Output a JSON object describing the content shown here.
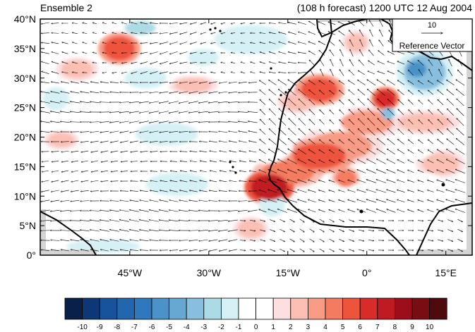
{
  "header": {
    "left_title": "Ensemble 2",
    "right_title": "(108 h forecast) 1200 UTC 12 Aug 2004"
  },
  "map": {
    "lon_range": [
      -62,
      20
    ],
    "lat_range": [
      0,
      40
    ],
    "lat_ticks": [
      {
        "value": 0,
        "label": "0°"
      },
      {
        "value": 5,
        "label": "5°N"
      },
      {
        "value": 10,
        "label": "10°N"
      },
      {
        "value": 15,
        "label": "15°N"
      },
      {
        "value": 20,
        "label": "20°N"
      },
      {
        "value": 25,
        "label": "25°N"
      },
      {
        "value": 30,
        "label": "30°N"
      },
      {
        "value": 35,
        "label": "35°N"
      },
      {
        "value": 40,
        "label": "40°N"
      }
    ],
    "lon_ticks": [
      {
        "value": -45,
        "label": "45°W"
      },
      {
        "value": -30,
        "label": "30°W"
      },
      {
        "value": -15,
        "label": "15°W"
      },
      {
        "value": 0,
        "label": "0°"
      },
      {
        "value": 15,
        "label": "15°E"
      }
    ],
    "anomaly_features": [
      {
        "lon": -18.5,
        "lat": 11.5,
        "rx": 3.5,
        "ry": 2.2,
        "value": 7
      },
      {
        "lon": -15,
        "lat": 14,
        "rx": 5,
        "ry": 2,
        "value": 4
      },
      {
        "lon": -9,
        "lat": 16.8,
        "rx": 5,
        "ry": 2.2,
        "value": 5
      },
      {
        "lon": -5,
        "lat": 18.5,
        "rx": 6,
        "ry": 2.5,
        "value": 3
      },
      {
        "lon": -4,
        "lat": 13,
        "rx": 2,
        "ry": 1.5,
        "value": 4
      },
      {
        "lon": 0,
        "lat": 22.5,
        "rx": 5,
        "ry": 2,
        "value": 3
      },
      {
        "lon": 3.5,
        "lat": 26.5,
        "rx": 2,
        "ry": 1.5,
        "value": 6
      },
      {
        "lon": -9,
        "lat": 28,
        "rx": 3.5,
        "ry": 2,
        "value": 5
      },
      {
        "lon": -13,
        "lat": 26,
        "rx": 3,
        "ry": 1.5,
        "value": 2
      },
      {
        "lon": -47,
        "lat": 35,
        "rx": 3,
        "ry": 2,
        "value": 5
      },
      {
        "lon": -55,
        "lat": 31.5,
        "rx": 3,
        "ry": 1.5,
        "value": 2
      },
      {
        "lon": -33,
        "lat": 28.8,
        "rx": 3.5,
        "ry": 1.2,
        "value": 2
      },
      {
        "lon": -2,
        "lat": 36,
        "rx": 2,
        "ry": 1.5,
        "value": 2
      },
      {
        "lon": 11,
        "lat": 22.5,
        "rx": 5,
        "ry": 1.5,
        "value": 2
      },
      {
        "lon": 14,
        "lat": 15.5,
        "rx": 3.5,
        "ry": 1.8,
        "value": 2
      },
      {
        "lon": -58,
        "lat": 19.5,
        "rx": 2.5,
        "ry": 1.2,
        "value": 2
      },
      {
        "lon": -22,
        "lat": 4.5,
        "rx": 2.5,
        "ry": 1.5,
        "value": 2
      },
      {
        "lon": 11,
        "lat": 31,
        "rx": 4,
        "ry": 3,
        "value": -4
      },
      {
        "lon": 9.5,
        "lat": 31.5,
        "rx": 1.8,
        "ry": 1.3,
        "value": -6
      },
      {
        "lon": -43,
        "lat": 38.5,
        "rx": 3,
        "ry": 1.2,
        "value": -3
      },
      {
        "lon": -22,
        "lat": 36.5,
        "rx": 7,
        "ry": 2.5,
        "value": -2
      },
      {
        "lon": -31,
        "lat": 33.5,
        "rx": 3,
        "ry": 1.5,
        "value": -2
      },
      {
        "lon": -42,
        "lat": 30,
        "rx": 4,
        "ry": 1.8,
        "value": -2
      },
      {
        "lon": -24,
        "lat": 31,
        "rx": 5,
        "ry": 2,
        "value": -1
      },
      {
        "lon": -45,
        "lat": 23,
        "rx": 8,
        "ry": 2.5,
        "value": -1
      },
      {
        "lon": -38,
        "lat": 20.5,
        "rx": 6,
        "ry": 2,
        "value": -2
      },
      {
        "lon": -20,
        "lat": 18.5,
        "rx": 6,
        "ry": 3,
        "value": -1
      },
      {
        "lon": -50,
        "lat": 14,
        "rx": 7,
        "ry": 2.5,
        "value": -1
      },
      {
        "lon": -36,
        "lat": 12,
        "rx": 6,
        "ry": 2,
        "value": -2
      },
      {
        "lon": -55,
        "lat": 7.5,
        "rx": 5,
        "ry": 2,
        "value": -1
      },
      {
        "lon": -40,
        "lat": 5.5,
        "rx": 7,
        "ry": 2,
        "value": -1
      },
      {
        "lon": -50,
        "lat": 1.5,
        "rx": 7,
        "ry": 1.2,
        "value": -2
      },
      {
        "lon": -18,
        "lat": 8.5,
        "rx": 2.5,
        "ry": 2,
        "value": -2
      },
      {
        "lon": -6,
        "lat": 22.5,
        "rx": 4,
        "ry": 2.5,
        "value": -1
      },
      {
        "lon": 4,
        "lat": 24,
        "rx": 1.2,
        "ry": 1,
        "value": -4
      },
      {
        "lon": -5,
        "lat": 10.5,
        "rx": 5,
        "ry": 1.8,
        "value": -1
      },
      {
        "lon": 8,
        "lat": 18,
        "rx": 5,
        "ry": 2,
        "value": -1
      },
      {
        "lon": 10,
        "lat": 12,
        "rx": 5,
        "ry": 2,
        "value": -1
      },
      {
        "lon": 3,
        "lat": 6,
        "rx": 5,
        "ry": 1.5,
        "value": -1
      },
      {
        "lon": -59,
        "lat": 26.5,
        "rx": 2.5,
        "ry": 2,
        "value": -2
      }
    ]
  },
  "reference_vector": {
    "magnitude_label": "10",
    "caption": "Reference Vector"
  },
  "colorbar": {
    "colors": [
      "#08204a",
      "#0d3777",
      "#17539c",
      "#2266ae",
      "#2f78bd",
      "#4a92c8",
      "#67a8d2",
      "#88bfde",
      "#addbe5",
      "#d5f1f6",
      "#ffffff",
      "#ffffff",
      "#fddfe0",
      "#fbbfb3",
      "#f89c86",
      "#f47b5f",
      "#ee533c",
      "#d92b2a",
      "#c01a23",
      "#9c0f1a",
      "#7a0c14",
      "#4f0a0d"
    ],
    "labels": [
      "-10",
      "-9",
      "-8",
      "-7",
      "-6",
      "-5",
      "-4",
      "-3",
      "-2",
      "-1",
      "0",
      "1",
      "2",
      "3",
      "4",
      "5",
      "6",
      "7",
      "8",
      "9",
      "10"
    ]
  }
}
